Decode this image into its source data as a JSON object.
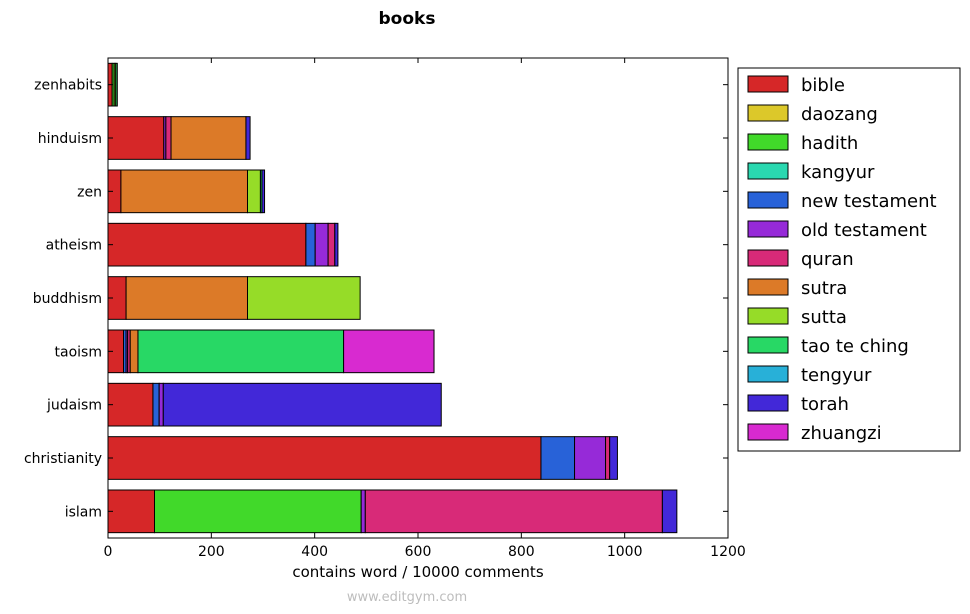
{
  "chart_data": {
    "type": "bar",
    "orientation": "horizontal",
    "stacked": true,
    "title": "books",
    "xlabel": "contains word / 10000 comments",
    "ylabel": "",
    "xlim": [
      0,
      1200
    ],
    "xticks": [
      0,
      200,
      400,
      600,
      800,
      1000,
      1200
    ],
    "categories": [
      "zenhabits",
      "hinduism",
      "zen",
      "atheism",
      "buddhism",
      "taoism",
      "judaism",
      "christianity",
      "islam"
    ],
    "legend_position": "right-outside",
    "grid": false,
    "series": [
      {
        "name": "bible",
        "color": "#d62728",
        "values": [
          8,
          108,
          25,
          383,
          35,
          30,
          87,
          838,
          90
        ]
      },
      {
        "name": "daozang",
        "color": "#dcc82a",
        "values": [
          0,
          0,
          0,
          0,
          0,
          0,
          0,
          0,
          0
        ]
      },
      {
        "name": "hadith",
        "color": "#41d92a",
        "values": [
          4,
          0,
          0,
          0,
          0,
          0,
          0,
          0,
          400
        ]
      },
      {
        "name": "kangyur",
        "color": "#2ad8b0",
        "values": [
          0,
          0,
          0,
          0,
          0,
          0,
          0,
          0,
          0
        ]
      },
      {
        "name": "new testament",
        "color": "#2862d8",
        "values": [
          0,
          0,
          0,
          18,
          0,
          5,
          12,
          65,
          0
        ]
      },
      {
        "name": "old testament",
        "color": "#962ad8",
        "values": [
          0,
          4,
          0,
          25,
          0,
          3,
          8,
          60,
          8
        ]
      },
      {
        "name": "quran",
        "color": "#d82a78",
        "values": [
          0,
          10,
          0,
          13,
          0,
          5,
          0,
          8,
          575
        ]
      },
      {
        "name": "sutra",
        "color": "#dc7a28",
        "values": [
          0,
          145,
          245,
          0,
          235,
          15,
          0,
          0,
          0
        ]
      },
      {
        "name": "sutta",
        "color": "#96dc28",
        "values": [
          3,
          0,
          25,
          0,
          218,
          0,
          0,
          0,
          0
        ]
      },
      {
        "name": "tao te ching",
        "color": "#28d865",
        "values": [
          3,
          0,
          3,
          0,
          0,
          398,
          0,
          0,
          0
        ]
      },
      {
        "name": "tengyur",
        "color": "#28b0d8",
        "values": [
          0,
          0,
          0,
          0,
          0,
          0,
          0,
          0,
          0
        ]
      },
      {
        "name": "torah",
        "color": "#4228d8",
        "values": [
          0,
          8,
          5,
          6,
          0,
          0,
          538,
          15,
          28
        ]
      },
      {
        "name": "zhuangzi",
        "color": "#d82ad0",
        "values": [
          0,
          0,
          0,
          0,
          0,
          175,
          0,
          0,
          0
        ]
      }
    ]
  },
  "footer": "www.editgym.com"
}
